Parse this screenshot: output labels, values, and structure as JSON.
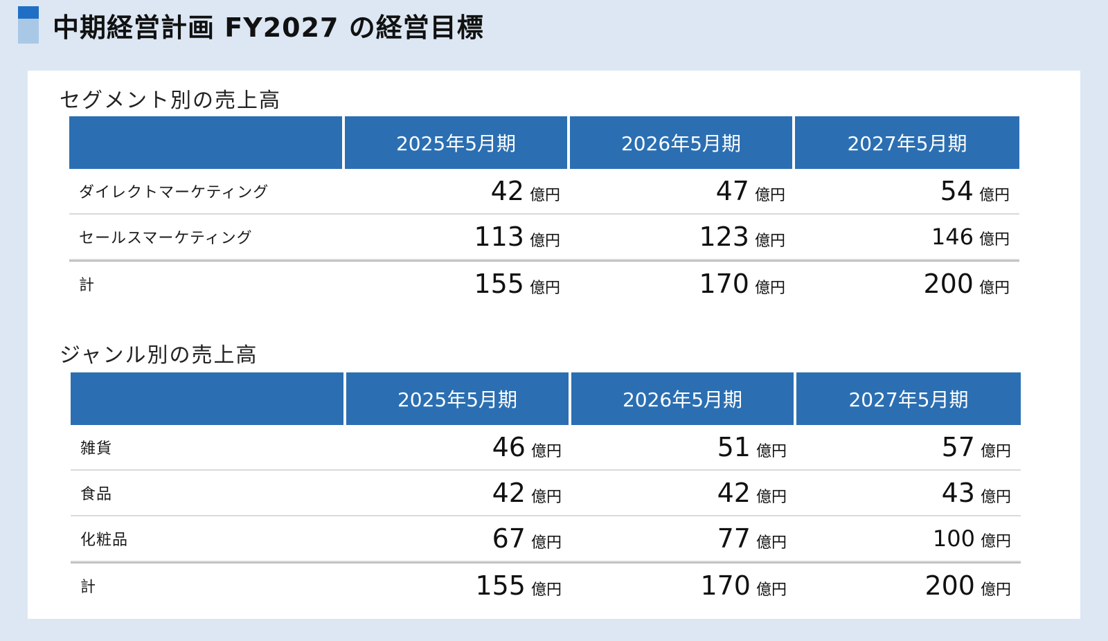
{
  "page": {
    "title": "中期経営計画 FY2027 の経営目標"
  },
  "columns": [
    "2025年5月期",
    "2026年5月期",
    "2027年5月期"
  ],
  "unit": "億円",
  "segment_table": {
    "title": "セグメント別の売上高",
    "rows": [
      {
        "label": "ダイレクトマーケティング",
        "values": [
          "42",
          "47",
          "54"
        ],
        "total": false
      },
      {
        "label": "セールスマーケティング",
        "values": [
          "113",
          "123",
          "146"
        ],
        "total": false
      },
      {
        "label": "計",
        "values": [
          "155",
          "170",
          "200"
        ],
        "total": true
      }
    ]
  },
  "genre_table": {
    "title": "ジャンル別の売上高",
    "rows": [
      {
        "label": "雑貨",
        "values": [
          "46",
          "51",
          "57"
        ],
        "total": false
      },
      {
        "label": "食品",
        "values": [
          "42",
          "42",
          "43"
        ],
        "total": false
      },
      {
        "label": "化粧品",
        "values": [
          "67",
          "77",
          "100"
        ],
        "total": false
      },
      {
        "label": "計",
        "values": [
          "155",
          "170",
          "200"
        ],
        "total": true
      }
    ]
  },
  "colors": {
    "background": "#dce7f3",
    "header_fill": "#2b6fb2",
    "accent": "#1f6fc4"
  }
}
